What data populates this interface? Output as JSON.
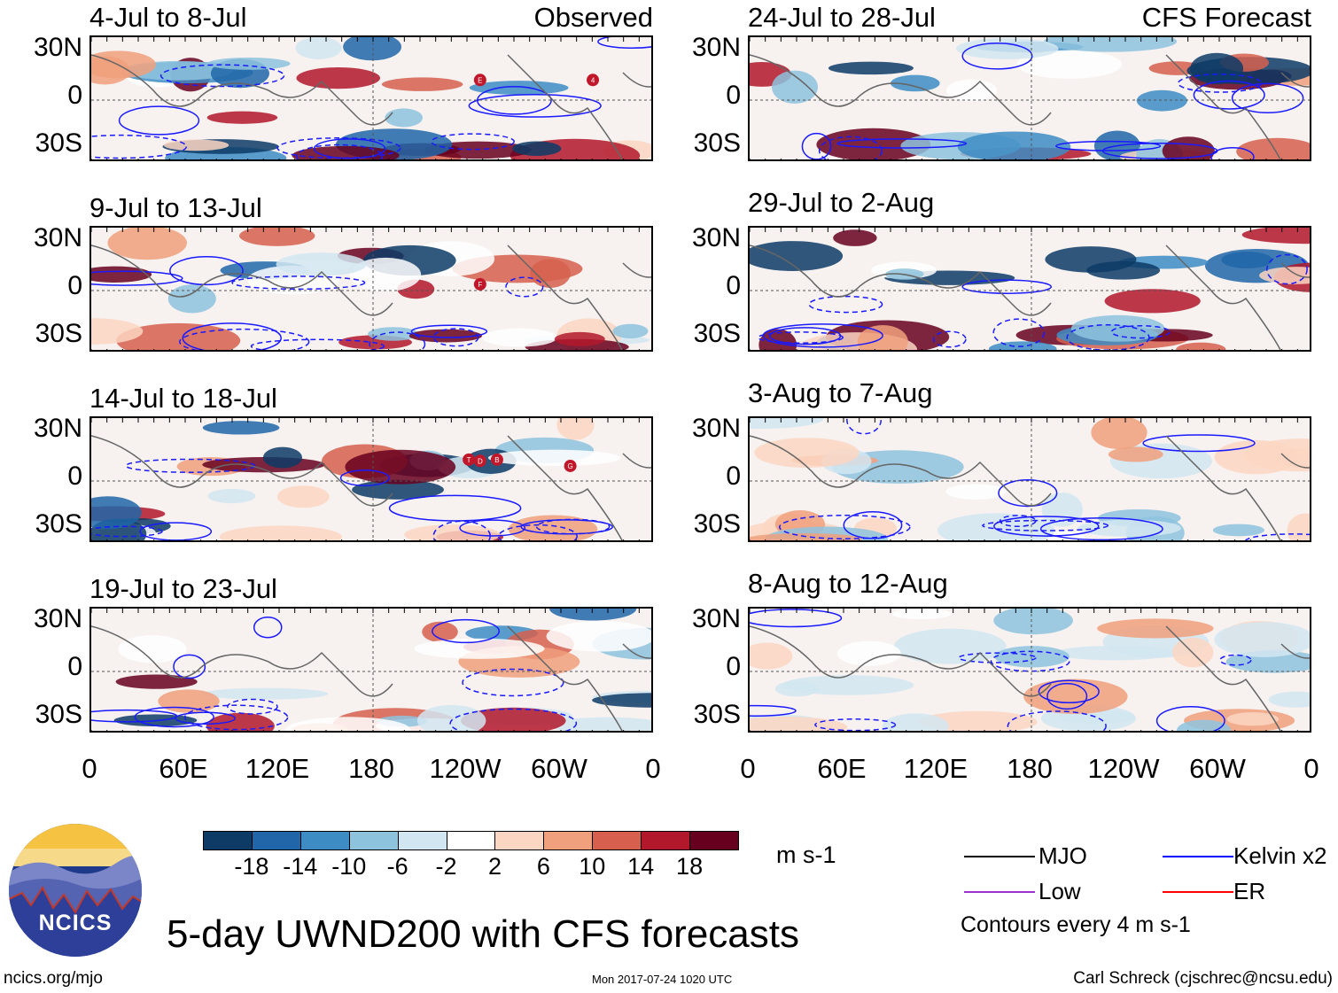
{
  "headline": "5-day UWND200 with CFS forecasts",
  "logo": {
    "text": "NCICS"
  },
  "footer": {
    "url": "ncics.org/mjo",
    "timestamp": "Mon 2017-07-24 1020 UTC",
    "author": "Carl Schreck (cjschrec@ncsu.edu)"
  },
  "colorbar": {
    "units": "m s-1",
    "ticks": [
      "-18",
      "-14",
      "-10",
      "-6",
      "-2",
      "2",
      "6",
      "10",
      "14",
      "18"
    ],
    "colors": [
      "#0d3b66",
      "#2066a8",
      "#3d8dc4",
      "#8ec3de",
      "#d2e6f1",
      "#ffffff",
      "#fbd6c2",
      "#f0a07c",
      "#d6604d",
      "#b2182b",
      "#67001f"
    ]
  },
  "legend": {
    "items": [
      {
        "label": "MJO",
        "color": "#000000"
      },
      {
        "label": "Kelvin x2",
        "color": "#0000ff"
      },
      {
        "label": "Low",
        "color": "#9a32cd"
      },
      {
        "label": "ER",
        "color": "#ff0000"
      }
    ],
    "note": "Contours every 4 m s-1"
  },
  "axes": {
    "y_ticks": [
      "30N",
      "0",
      "30S"
    ],
    "x_ticks": [
      "0",
      "60E",
      "120E",
      "180",
      "120W",
      "60W",
      "0"
    ],
    "x_range_deg": [
      0,
      360
    ],
    "y_range_deg": [
      -40,
      40
    ]
  },
  "chart_data": [
    {
      "type": "heatmap",
      "title": "4-Jul to 8-Jul",
      "label": "Observed",
      "variable": "200-hPa zonal wind anomaly",
      "units": "m s-1",
      "storms": [
        "E",
        "4"
      ]
    },
    {
      "type": "heatmap",
      "title": "9-Jul to 13-Jul",
      "label": "",
      "variable": "200-hPa zonal wind anomaly",
      "units": "m s-1",
      "storms": [
        "F"
      ]
    },
    {
      "type": "heatmap",
      "title": "14-Jul to 18-Jul",
      "label": "",
      "variable": "200-hPa zonal wind anomaly",
      "units": "m s-1",
      "storms": [
        "T",
        "B",
        "G",
        "D"
      ]
    },
    {
      "type": "heatmap",
      "title": "19-Jul to 23-Jul",
      "label": "",
      "variable": "200-hPa zonal wind anomaly",
      "units": "m s-1",
      "storms": []
    },
    {
      "type": "heatmap",
      "title": "24-Jul to 28-Jul",
      "label": "CFS Forecast",
      "variable": "200-hPa zonal wind anomaly",
      "units": "m s-1",
      "storms": []
    },
    {
      "type": "heatmap",
      "title": "29-Jul to 2-Aug",
      "label": "",
      "variable": "200-hPa zonal wind anomaly",
      "units": "m s-1",
      "storms": []
    },
    {
      "type": "heatmap",
      "title": "3-Aug to 7-Aug",
      "label": "",
      "variable": "200-hPa zonal wind anomaly",
      "units": "m s-1",
      "storms": []
    },
    {
      "type": "heatmap",
      "title": "8-Aug to 12-Aug",
      "label": "",
      "variable": "200-hPa zonal wind anomaly",
      "units": "m s-1",
      "storms": []
    }
  ]
}
